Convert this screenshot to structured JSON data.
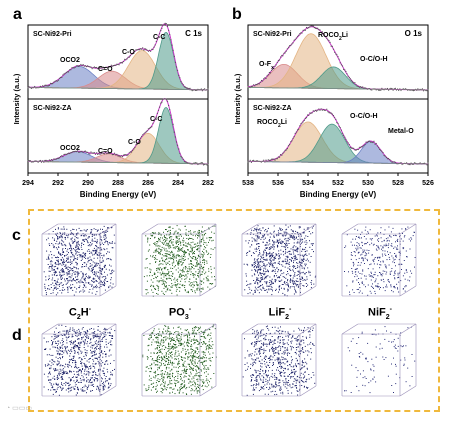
{
  "panels": {
    "a": "a",
    "b": "b",
    "c": "c",
    "d": "d"
  },
  "xps_c1s": {
    "corner_label": "C 1s",
    "top_sample": "SC-Ni92-Pri",
    "bottom_sample": "SC-Ni92-ZA",
    "y_label": "Intensity (a.u.)",
    "x_label": "Binding Energy (eV)",
    "x_ticks": [
      "294",
      "292",
      "290",
      "288",
      "286",
      "284",
      "282"
    ],
    "top_peaks": [
      "OCO2",
      "C=O",
      "C-O",
      "C-C"
    ],
    "bottom_peaks": [
      "OCO2",
      "C=O",
      "C-O",
      "C-C"
    ]
  },
  "xps_o1s": {
    "corner_label": "O 1s",
    "top_sample": "SC-Ni92-Pri",
    "bottom_sample": "SC-Ni92-ZA",
    "y_label": "Intensity (a.u.)",
    "x_label": "Binding Energy (eV)",
    "x_ticks": [
      "538",
      "536",
      "534",
      "532",
      "530",
      "528",
      "526"
    ],
    "top_peaks": [
      "O-Fx",
      "ROCO2Li",
      "O-C/O-H"
    ],
    "bottom_peaks": [
      "ROCO2Li",
      "O-C/O-H",
      "Metal-O"
    ]
  },
  "tof_sims": {
    "border_color": "#f0b93c",
    "ions": [
      {
        "name": "C2H-",
        "base": "C",
        "sub": "2",
        "rest": "H",
        "sup": "-",
        "color": "#1a1f66"
      },
      {
        "name": "PO3-",
        "base": "PO",
        "sub": "3",
        "rest": "",
        "sup": "-",
        "color": "#1f5a1c"
      },
      {
        "name": "LiF2-",
        "base": "LiF",
        "sub": "2",
        "rest": "",
        "sup": "-",
        "color": "#1a1f66"
      },
      {
        "name": "NiF2-",
        "base": "NiF",
        "sub": "2",
        "rest": "",
        "sup": "-",
        "color": "#2a2f7a"
      }
    ],
    "density_row_c": [
      0.95,
      0.9,
      0.95,
      0.45
    ],
    "density_row_d": [
      0.9,
      0.95,
      0.75,
      0.12
    ]
  },
  "chart_data": [
    {
      "type": "line",
      "panel": "a",
      "corner_label": "C 1s",
      "xlabel": "Binding Energy (eV)",
      "ylabel": "Intensity (a.u.)",
      "xlim": [
        294,
        282
      ],
      "x_ticks": [
        294,
        292,
        290,
        288,
        286,
        284,
        282
      ],
      "subplots": [
        {
          "sample": "SC-Ni92-Pri",
          "peaks": [
            {
              "label": "OCO2",
              "center": 290.6,
              "height": 0.35,
              "width": 1.0,
              "color": "#6a7fc4"
            },
            {
              "label": "C=O",
              "center": 288.4,
              "height": 0.28,
              "width": 0.9,
              "color": "#d98b8b"
            },
            {
              "label": "C-O",
              "center": 286.4,
              "height": 0.62,
              "width": 0.9,
              "color": "#e3b483"
            },
            {
              "label": "C-C",
              "center": 284.8,
              "height": 0.92,
              "width": 0.5,
              "color": "#4f9a8a"
            }
          ]
        },
        {
          "sample": "SC-Ni92-ZA",
          "peaks": [
            {
              "label": "OCO2",
              "center": 290.7,
              "height": 0.17,
              "width": 0.9,
              "color": "#6a7fc4"
            },
            {
              "label": "C=O",
              "center": 288.6,
              "height": 0.14,
              "width": 0.8,
              "color": "#d98b8b"
            },
            {
              "label": "C-O",
              "center": 286.0,
              "height": 0.48,
              "width": 0.75,
              "color": "#e3b483"
            },
            {
              "label": "C-C",
              "center": 284.8,
              "height": 0.9,
              "width": 0.5,
              "color": "#4f9a8a"
            }
          ]
        }
      ]
    },
    {
      "type": "line",
      "panel": "b",
      "corner_label": "O 1s",
      "xlabel": "Binding Energy (eV)",
      "ylabel": "Intensity (a.u.)",
      "xlim": [
        538,
        526
      ],
      "x_ticks": [
        538,
        536,
        534,
        532,
        530,
        528,
        526
      ],
      "subplots": [
        {
          "sample": "SC-Ni92-Pri",
          "peaks": [
            {
              "label": "O-Fx",
              "center": 535.6,
              "height": 0.38,
              "width": 0.9,
              "color": "#d98b8b"
            },
            {
              "label": "ROCO2Li",
              "center": 533.8,
              "height": 0.88,
              "width": 1.0,
              "color": "#e3b483"
            },
            {
              "label": "O-C/O-H",
              "center": 532.3,
              "height": 0.35,
              "width": 0.8,
              "color": "#4f9a8a"
            }
          ]
        },
        {
          "sample": "SC-Ni92-ZA",
          "peaks": [
            {
              "label": "ROCO2Li",
              "center": 534.0,
              "height": 0.65,
              "width": 0.95,
              "color": "#e3b483"
            },
            {
              "label": "O-C/O-H",
              "center": 532.4,
              "height": 0.62,
              "width": 0.85,
              "color": "#4f9a8a"
            },
            {
              "label": "Metal-O",
              "center": 529.8,
              "height": 0.35,
              "width": 0.65,
              "color": "#6a7fc4"
            }
          ]
        }
      ]
    }
  ]
}
